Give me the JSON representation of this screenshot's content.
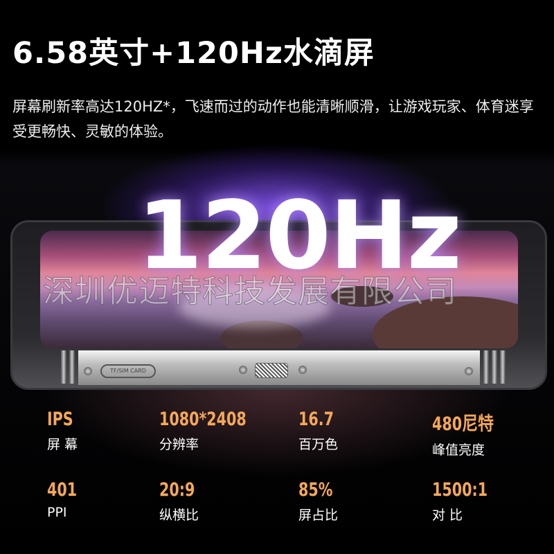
{
  "header": {
    "title": "6.58英寸+120Hz水滴屏",
    "description": "屏幕刷新率高达120HZ*，飞速而过的动作也能清晰顺滑，让游戏玩家、体育迷享受更畅快、灵敏的体验。"
  },
  "hero": {
    "big_text": "120Hz",
    "sim_label": "TF/SIM CARD",
    "watermark": "深圳优迈特科技发展有限公司"
  },
  "colors": {
    "accent": "#f4a85a",
    "glow": "#8c5aff"
  },
  "specs": [
    {
      "value": "IPS",
      "label": "屏 幕"
    },
    {
      "value": "1080*2408",
      "label": "分辨率"
    },
    {
      "value": "16.7",
      "label": "百万色"
    },
    {
      "value": "480尼特",
      "label": "峰值亮度"
    },
    {
      "value": "401",
      "label": "PPI"
    },
    {
      "value": "20:9",
      "label": "纵横比"
    },
    {
      "value": "85%",
      "label": "屏占比"
    },
    {
      "value": "1500:1",
      "label": "对 比"
    }
  ]
}
